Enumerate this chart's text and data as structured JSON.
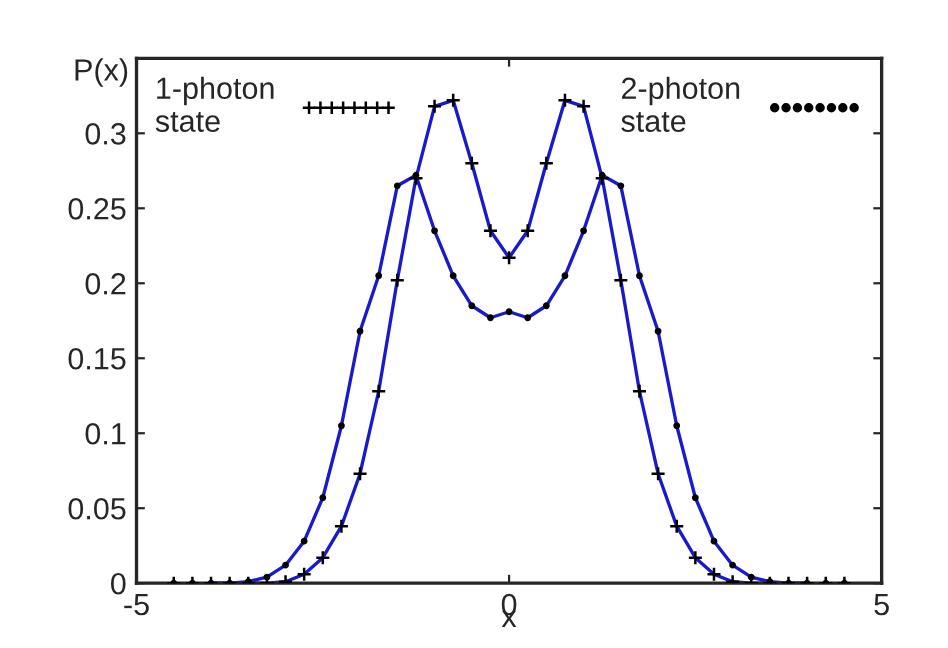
{
  "chart_data": {
    "type": "line",
    "x": [
      -4.5,
      -4.25,
      -4.0,
      -3.75,
      -3.5,
      -3.25,
      -3.0,
      -2.75,
      -2.5,
      -2.25,
      -2.0,
      -1.75,
      -1.5,
      -1.25,
      -1.0,
      -0.75,
      -0.5,
      -0.25,
      0,
      0.25,
      0.5,
      0.75,
      1.0,
      1.25,
      1.5,
      1.75,
      2.0,
      2.25,
      2.5,
      2.75,
      3.0,
      3.25,
      3.5,
      3.75,
      4.0,
      4.25,
      4.5
    ],
    "series": [
      {
        "color": "#1a1acc",
        "values": [
          null,
          null,
          0,
          0,
          0,
          0,
          0.001,
          0.006,
          0.017,
          0.038,
          0.073,
          0.128,
          0.202,
          0.27,
          0.318,
          0.322,
          0.28,
          0.235,
          0.217,
          0.235,
          0.28,
          0.322,
          0.318,
          0.27,
          0.202,
          0.128,
          0.073,
          0.038,
          0.017,
          0.006,
          0.001,
          0,
          0,
          0,
          0,
          null,
          null
        ]
      },
      {
        "color": "#1a1acc",
        "values": [
          null,
          null,
          0,
          0,
          0.001,
          0.004,
          0.012,
          0.028,
          0.057,
          0.105,
          0.168,
          0.205,
          0.265,
          0.272,
          0.235,
          0.205,
          0.185,
          0.177,
          0.181,
          0.177,
          0.185,
          0.205,
          0.235,
          0.272,
          0.265,
          0.205,
          0.168,
          0.105,
          0.057,
          0.028,
          0.012,
          0.004,
          0.001,
          0,
          0,
          null,
          null
        ]
      },
      {
        "type": "scatter",
        "name": "1-photon\nstate",
        "marker": "cross",
        "color": "#000000",
        "values": [
          0,
          0,
          0,
          0,
          0,
          0,
          0.001,
          0.006,
          0.017,
          0.038,
          0.073,
          0.128,
          0.202,
          0.27,
          0.318,
          0.322,
          0.28,
          0.235,
          0.217,
          0.235,
          0.28,
          0.322,
          0.318,
          0.27,
          0.202,
          0.128,
          0.073,
          0.038,
          0.017,
          0.006,
          0.001,
          0,
          0,
          0,
          0,
          0,
          0
        ]
      },
      {
        "type": "scatter",
        "name": "2-photon\nstate",
        "marker": "circle",
        "color": "#000000",
        "values": [
          0,
          0,
          0,
          0,
          0.001,
          0.004,
          0.012,
          0.028,
          0.057,
          0.105,
          0.168,
          0.205,
          0.265,
          0.272,
          0.235,
          0.205,
          0.185,
          0.177,
          0.181,
          0.177,
          0.185,
          0.205,
          0.235,
          0.272,
          0.265,
          0.205,
          0.168,
          0.105,
          0.057,
          0.028,
          0.012,
          0.004,
          0.001,
          0,
          0,
          0,
          0
        ]
      }
    ],
    "xlabel": "x",
    "ylabel": "P(x)",
    "xlim": [
      -5,
      5
    ],
    "xticks": [
      -5,
      0,
      5
    ],
    "ylim": [
      0,
      0.35
    ],
    "yticks": [
      0,
      0.05,
      0.1,
      0.15,
      0.2,
      0.25,
      0.3
    ],
    "grid": false,
    "legend": "top"
  }
}
